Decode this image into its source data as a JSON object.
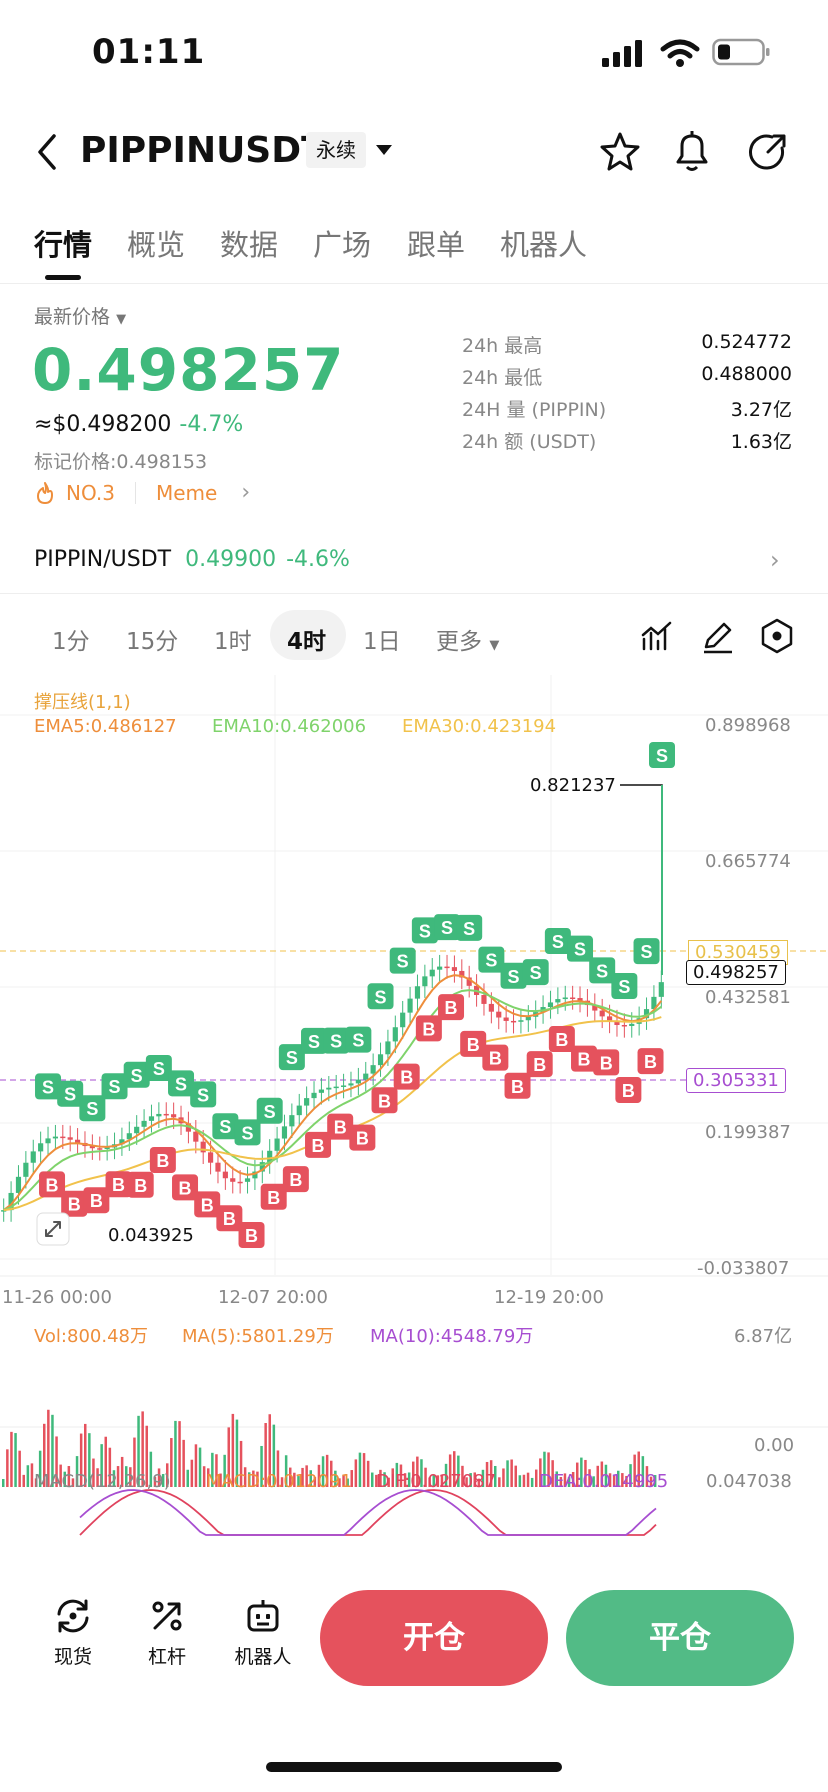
{
  "status_bar": {
    "time": "01:11"
  },
  "header": {
    "symbol": "PIPPINUSDT",
    "contract_type": "永续"
  },
  "tabs": [
    "行情",
    "概览",
    "数据",
    "广场",
    "跟单",
    "机器人"
  ],
  "price": {
    "latest_label": "最新价格",
    "last": "0.498257",
    "usd_approx": "≈$0.498200",
    "change": "-4.7%",
    "mark_label": "标记价格:",
    "mark": "0.498153",
    "rank": "NO.3",
    "category": "Meme"
  },
  "stats": [
    {
      "label": "24h  最高",
      "value": "0.524772"
    },
    {
      "label": "24h  最低",
      "value": "0.488000"
    },
    {
      "label": "24H  量 (PIPPIN)",
      "value": "3.27亿"
    },
    {
      "label": "24h  额 (USDT)",
      "value": "1.63亿"
    }
  ],
  "spot": {
    "pair": "PIPPIN/USDT",
    "price": "0.49900",
    "change": "-4.6%"
  },
  "intervals": [
    "1分",
    "15分",
    "1时",
    "4时",
    "1日"
  ],
  "more_label": "更多",
  "chart": {
    "indicator_title": "撑压线(1,1)",
    "ema5": "EMA5:0.486127",
    "ema10": "EMA10:0.462006",
    "ema30": "EMA30:0.423194",
    "y_labels": [
      "0.898968",
      "0.665774",
      "0.432581",
      "0.199387",
      "-0.033807"
    ],
    "high_label": "0.821237",
    "low_label": "0.043925",
    "resistance": "0.530459",
    "support": "0.305331",
    "current": "0.498257",
    "x_labels": [
      "11-26 00:00",
      "12-07 20:00",
      "12-19 20:00"
    ],
    "vol": "Vol:800.48万",
    "vol_ma5": "MA(5):5801.29万",
    "vol_ma10": "MA(10):4548.79万",
    "vol_max": "6.87亿",
    "vol_min": "0.00",
    "macd_title": "MACD(12,26,9)",
    "macd": "MACD:0.012091",
    "dif": "DIF:0.027087",
    "dea": "DEA:0.014995",
    "macd_max": "0.047038",
    "buy_marker": "B",
    "sell_marker": "S"
  },
  "colors": {
    "up": "#3fb97c",
    "down": "#e5525d",
    "ema5": "#ee8e3b",
    "ema10": "#7fd36b",
    "ema30": "#f1c24b"
  },
  "bottom_bar": {
    "spot": "现货",
    "leverage": "杠杆",
    "bot": "机器人",
    "open": "开仓",
    "close": "平仓"
  }
}
